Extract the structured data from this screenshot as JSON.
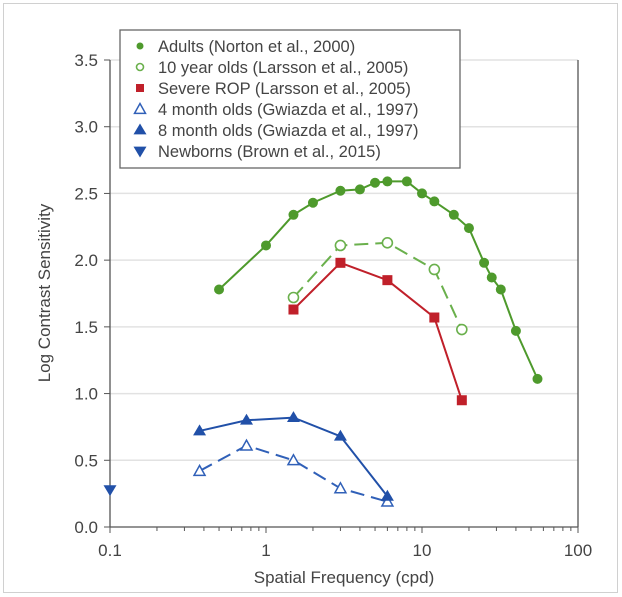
{
  "chart_data": {
    "type": "line",
    "title": "",
    "xlabel": "Spatial Frequency (cpd)",
    "ylabel": "Log Contrast Sensitivity",
    "xscale": "log",
    "xlim": [
      0.1,
      100
    ],
    "ylim": [
      0,
      3.5
    ],
    "xticks": [
      "0.1",
      "1",
      "10",
      "100"
    ],
    "yticks": [
      "0.0",
      "0.5",
      "1.0",
      "1.5",
      "2.0",
      "2.5",
      "3.0",
      "3.5"
    ],
    "grid": "horizontal",
    "legend_position": "top",
    "series": [
      {
        "name": "Adults (Norton et al., 2000)",
        "color": "#4e9a2c",
        "marker": "filled-circle",
        "line": "solid",
        "x": [
          0.5,
          1,
          1.5,
          2,
          3,
          4,
          5,
          6,
          8,
          10,
          12,
          16,
          20,
          25,
          28,
          32,
          40,
          55
        ],
        "y": [
          1.78,
          2.11,
          2.34,
          2.43,
          2.52,
          2.53,
          2.58,
          2.59,
          2.59,
          2.5,
          2.44,
          2.34,
          2.24,
          1.98,
          1.87,
          1.78,
          1.47,
          1.11
        ]
      },
      {
        "name": "10 year olds (Larsson et al., 2005)",
        "color": "#6ab04c",
        "marker": "open-circle",
        "line": "dashed",
        "x": [
          1.5,
          3,
          6,
          12,
          18
        ],
        "y": [
          1.72,
          2.11,
          2.13,
          1.93,
          1.48
        ]
      },
      {
        "name": "Severe ROP (Larsson et al., 2005)",
        "color": "#c0202a",
        "marker": "filled-square",
        "line": "solid",
        "x": [
          1.5,
          3,
          6,
          12,
          18
        ],
        "y": [
          1.63,
          1.98,
          1.85,
          1.57,
          0.95
        ]
      },
      {
        "name": "4 month olds (Gwiazda et al., 1997)",
        "color": "#3060b8",
        "marker": "open-triangle",
        "line": "dashed",
        "x": [
          0.375,
          0.75,
          1.5,
          3,
          6
        ],
        "y": [
          0.42,
          0.61,
          0.5,
          0.29,
          0.19
        ]
      },
      {
        "name": "8 month olds (Gwiazda et al., 1997)",
        "color": "#2150a8",
        "marker": "filled-triangle",
        "line": "solid",
        "x": [
          0.375,
          0.75,
          1.5,
          3,
          6
        ],
        "y": [
          0.72,
          0.8,
          0.82,
          0.68,
          0.23
        ]
      },
      {
        "name": "Newborns (Brown et al., 2015)",
        "color": "#2150a8",
        "marker": "filled-triangle-down",
        "line": "none",
        "x": [
          0.1
        ],
        "y": [
          0.28
        ]
      }
    ]
  }
}
